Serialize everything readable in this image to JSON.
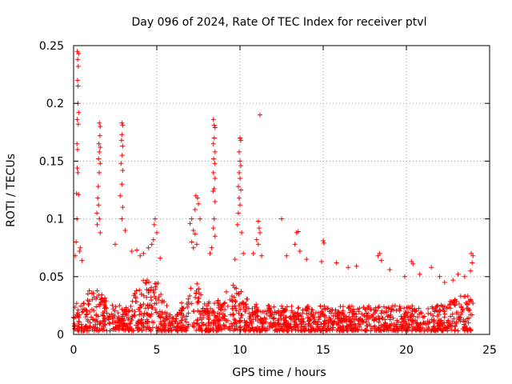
{
  "chart_data": {
    "type": "scatter",
    "title": "Day 096 of 2024, Rate Of TEC Index for receiver ptvl",
    "xlabel": "GPS time / hours",
    "ylabel": "ROTI / TECUs",
    "xlim": [
      0,
      25
    ],
    "ylim": [
      0,
      0.25
    ],
    "xticks": [
      0,
      5,
      10,
      15,
      20,
      25
    ],
    "xtick_labels": [
      "0",
      "5",
      "10",
      "15",
      "20",
      "25"
    ],
    "yticks": [
      0,
      0.05,
      0.1,
      0.15,
      0.2,
      0.25
    ],
    "ytick_labels": [
      "0",
      "0.05",
      "0.1",
      "0.15",
      "0.2",
      "0.25"
    ],
    "grid": true,
    "marker": "+",
    "color": "#ff0000",
    "series": [
      {
        "name": "ROTI",
        "points": [
          [
            0.22,
            0.245
          ],
          [
            0.25,
            0.238
          ],
          [
            0.3,
            0.243
          ],
          [
            0.28,
            0.232
          ],
          [
            0.24,
            0.22
          ],
          [
            0.27,
            0.215
          ],
          [
            0.26,
            0.2
          ],
          [
            0.3,
            0.192
          ],
          [
            0.22,
            0.186
          ],
          [
            0.28,
            0.182
          ],
          [
            0.2,
            0.165
          ],
          [
            0.24,
            0.16
          ],
          [
            0.22,
            0.144
          ],
          [
            0.26,
            0.14
          ],
          [
            0.18,
            0.122
          ],
          [
            0.3,
            0.121
          ],
          [
            0.2,
            0.1
          ],
          [
            0.15,
            0.08
          ],
          [
            0.35,
            0.072
          ],
          [
            0.1,
            0.068
          ],
          [
            0.4,
            0.075
          ],
          [
            0.5,
            0.064
          ],
          [
            1.55,
            0.183
          ],
          [
            1.6,
            0.18
          ],
          [
            1.58,
            0.172
          ],
          [
            1.52,
            0.165
          ],
          [
            1.6,
            0.162
          ],
          [
            1.55,
            0.158
          ],
          [
            1.5,
            0.152
          ],
          [
            1.6,
            0.148
          ],
          [
            1.54,
            0.14
          ],
          [
            1.48,
            0.128
          ],
          [
            1.45,
            0.118
          ],
          [
            1.5,
            0.112
          ],
          [
            1.4,
            0.105
          ],
          [
            1.55,
            0.1
          ],
          [
            1.42,
            0.095
          ],
          [
            1.6,
            0.088
          ],
          [
            2.9,
            0.183
          ],
          [
            2.95,
            0.181
          ],
          [
            2.9,
            0.173
          ],
          [
            2.88,
            0.168
          ],
          [
            2.95,
            0.163
          ],
          [
            2.92,
            0.155
          ],
          [
            2.85,
            0.148
          ],
          [
            2.95,
            0.142
          ],
          [
            2.9,
            0.13
          ],
          [
            2.8,
            0.12
          ],
          [
            2.95,
            0.11
          ],
          [
            2.9,
            0.1
          ],
          [
            3.1,
            0.09
          ],
          [
            2.5,
            0.078
          ],
          [
            3.5,
            0.072
          ],
          [
            4.9,
            0.1
          ],
          [
            4.85,
            0.095
          ],
          [
            5.0,
            0.088
          ],
          [
            4.8,
            0.082
          ],
          [
            4.7,
            0.078
          ],
          [
            4.5,
            0.075
          ],
          [
            4.2,
            0.07
          ],
          [
            3.8,
            0.073
          ],
          [
            4.0,
            0.068
          ],
          [
            5.2,
            0.066
          ],
          [
            7.1,
            0.1
          ],
          [
            7.0,
            0.096
          ],
          [
            7.2,
            0.09
          ],
          [
            7.3,
            0.087
          ],
          [
            7.1,
            0.08
          ],
          [
            7.4,
            0.078
          ],
          [
            7.35,
            0.12
          ],
          [
            7.45,
            0.118
          ],
          [
            7.5,
            0.113
          ],
          [
            7.3,
            0.108
          ],
          [
            7.6,
            0.1
          ],
          [
            7.2,
            0.075
          ],
          [
            8.4,
            0.186
          ],
          [
            8.45,
            0.181
          ],
          [
            8.5,
            0.179
          ],
          [
            8.45,
            0.17
          ],
          [
            8.4,
            0.165
          ],
          [
            8.5,
            0.158
          ],
          [
            8.42,
            0.152
          ],
          [
            8.48,
            0.148
          ],
          [
            8.4,
            0.14
          ],
          [
            8.5,
            0.135
          ],
          [
            8.45,
            0.126
          ],
          [
            8.38,
            0.124
          ],
          [
            8.5,
            0.115
          ],
          [
            8.45,
            0.1
          ],
          [
            8.4,
            0.092
          ],
          [
            8.5,
            0.085
          ],
          [
            8.3,
            0.075
          ],
          [
            8.2,
            0.07
          ],
          [
            10.0,
            0.17
          ],
          [
            10.05,
            0.168
          ],
          [
            9.95,
            0.158
          ],
          [
            10.0,
            0.15
          ],
          [
            10.05,
            0.146
          ],
          [
            9.95,
            0.14
          ],
          [
            10.0,
            0.135
          ],
          [
            9.9,
            0.128
          ],
          [
            10.05,
            0.125
          ],
          [
            9.95,
            0.118
          ],
          [
            10.0,
            0.112
          ],
          [
            9.9,
            0.105
          ],
          [
            9.85,
            0.095
          ],
          [
            10.1,
            0.088
          ],
          [
            10.2,
            0.07
          ],
          [
            9.7,
            0.065
          ],
          [
            11.2,
            0.19
          ],
          [
            11.1,
            0.098
          ],
          [
            11.15,
            0.092
          ],
          [
            11.2,
            0.088
          ],
          [
            11.0,
            0.082
          ],
          [
            11.1,
            0.078
          ],
          [
            10.8,
            0.07
          ],
          [
            11.3,
            0.068
          ],
          [
            12.5,
            0.1
          ],
          [
            13.4,
            0.088
          ],
          [
            13.5,
            0.089
          ],
          [
            13.3,
            0.078
          ],
          [
            13.6,
            0.072
          ],
          [
            12.8,
            0.068
          ],
          [
            14.0,
            0.065
          ],
          [
            15.0,
            0.081
          ],
          [
            15.05,
            0.079
          ],
          [
            14.9,
            0.063
          ],
          [
            15.8,
            0.062
          ],
          [
            16.5,
            0.058
          ],
          [
            17.0,
            0.059
          ],
          [
            18.4,
            0.07
          ],
          [
            18.3,
            0.068
          ],
          [
            18.5,
            0.064
          ],
          [
            19.0,
            0.056
          ],
          [
            20.3,
            0.063
          ],
          [
            20.4,
            0.061
          ],
          [
            19.9,
            0.05
          ],
          [
            20.8,
            0.052
          ],
          [
            21.5,
            0.058
          ],
          [
            22.0,
            0.05
          ],
          [
            22.3,
            0.045
          ],
          [
            22.8,
            0.047
          ],
          [
            23.1,
            0.052
          ],
          [
            23.5,
            0.05
          ],
          [
            23.9,
            0.07
          ],
          [
            24.0,
            0.068
          ],
          [
            23.95,
            0.062
          ],
          [
            23.85,
            0.055
          ]
        ]
      }
    ]
  }
}
